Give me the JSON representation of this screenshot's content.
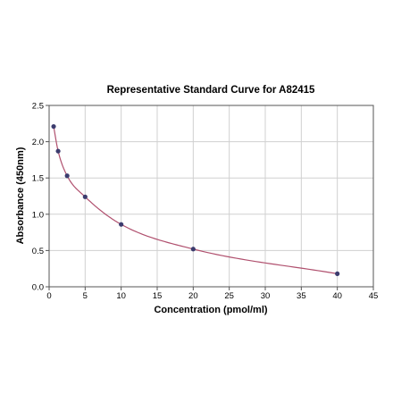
{
  "chart_data": {
    "type": "scatter",
    "title": "Representative Standard Curve for A82415",
    "xlabel": "Concentration (pmol/ml)",
    "ylabel": "Absorbance (450nm)",
    "xlim": [
      0,
      45
    ],
    "ylim": [
      0,
      2.5
    ],
    "x_ticks": [
      0,
      5,
      10,
      15,
      20,
      25,
      30,
      35,
      40,
      45
    ],
    "y_ticks": [
      "0.0",
      "0.5",
      "1.0",
      "1.5",
      "2.0",
      "2.5"
    ],
    "grid": true,
    "legend": "none",
    "series": [
      {
        "x": [
          0.625,
          1.25,
          2.5,
          5,
          10,
          20,
          40
        ],
        "y": [
          2.21,
          1.87,
          1.53,
          1.24,
          0.86,
          0.52,
          0.18
        ],
        "marker_color": "#3c3c6e",
        "fit_line_color": "#b0506e",
        "fit": "smooth curve"
      }
    ]
  }
}
